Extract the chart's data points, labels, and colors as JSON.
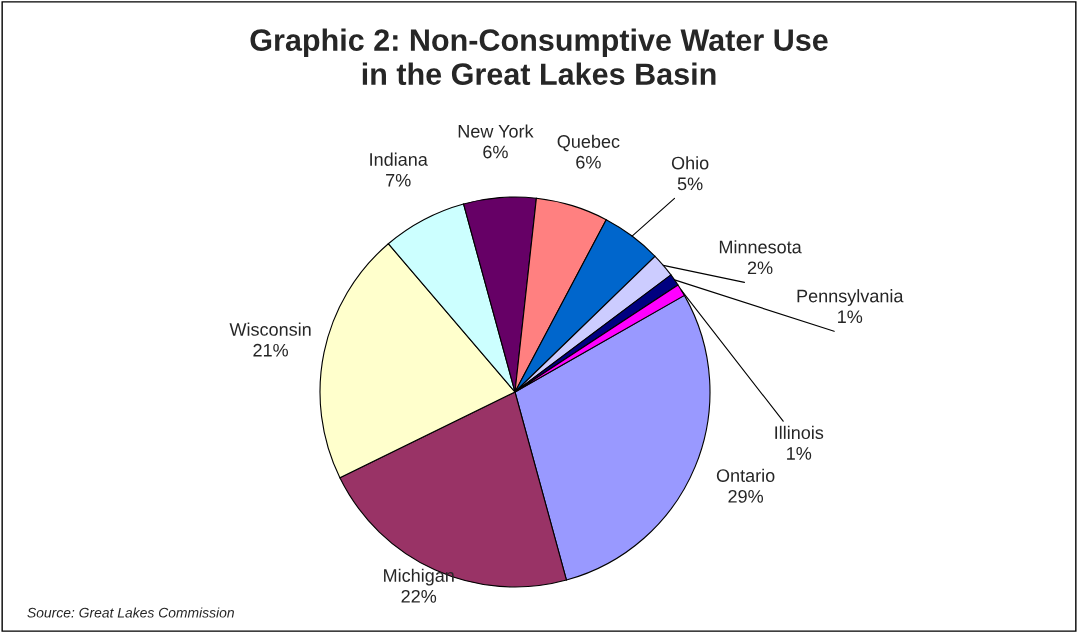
{
  "chart_data": {
    "type": "pie",
    "title": "Graphic 2: Non-Consumptive Water Use\nin the Great Lakes Basin",
    "categories": [
      "Ontario",
      "Michigan",
      "Wisconsin",
      "Indiana",
      "New York",
      "Quebec",
      "Ohio",
      "Minnesota",
      "Pennsylvania",
      "Illinois"
    ],
    "values": [
      29,
      22,
      21,
      7,
      6,
      6,
      5,
      2,
      1,
      1
    ],
    "value_labels": [
      "29%",
      "22%",
      "21%",
      "7%",
      "6%",
      "6%",
      "5%",
      "2%",
      "1%",
      "1%"
    ],
    "colors": [
      "#9999ff",
      "#993366",
      "#ffffcc",
      "#ccffff",
      "#660066",
      "#ff8080",
      "#0066cc",
      "#ccccff",
      "#000080",
      "#ff00ff"
    ],
    "annotations": [
      "Source: Great Lakes Commission"
    ]
  }
}
